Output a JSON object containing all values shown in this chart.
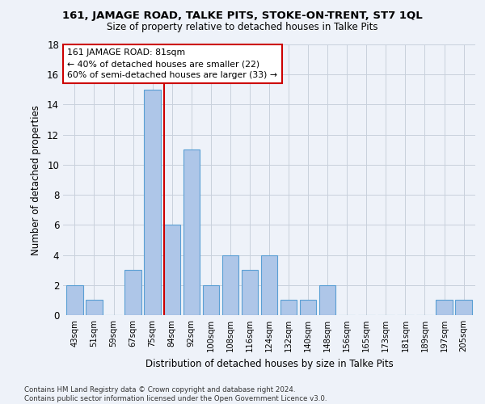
{
  "title": "161, JAMAGE ROAD, TALKE PITS, STOKE-ON-TRENT, ST7 1QL",
  "subtitle": "Size of property relative to detached houses in Talke Pits",
  "xlabel": "Distribution of detached houses by size in Talke Pits",
  "ylabel": "Number of detached properties",
  "categories": [
    "43sqm",
    "51sqm",
    "59sqm",
    "67sqm",
    "75sqm",
    "84sqm",
    "92sqm",
    "100sqm",
    "108sqm",
    "116sqm",
    "124sqm",
    "132sqm",
    "140sqm",
    "148sqm",
    "156sqm",
    "165sqm",
    "173sqm",
    "181sqm",
    "189sqm",
    "197sqm",
    "205sqm"
  ],
  "values": [
    2,
    1,
    0,
    3,
    15,
    6,
    11,
    2,
    4,
    3,
    4,
    1,
    1,
    2,
    0,
    0,
    0,
    0,
    0,
    1,
    1
  ],
  "bar_color": "#aec6e8",
  "bar_edge_color": "#5a9fd4",
  "vline_x": 4.58,
  "vline_color": "#cc0000",
  "annotation_text": "161 JAMAGE ROAD: 81sqm\n← 40% of detached houses are smaller (22)\n60% of semi-detached houses are larger (33) →",
  "annotation_box_color": "#ffffff",
  "annotation_box_edge": "#cc0000",
  "ylim": [
    0,
    18
  ],
  "yticks": [
    0,
    2,
    4,
    6,
    8,
    10,
    12,
    14,
    16,
    18
  ],
  "footnote": "Contains HM Land Registry data © Crown copyright and database right 2024.\nContains public sector information licensed under the Open Government Licence v3.0.",
  "background_color": "#eef2f9",
  "grid_color": "#c8d0dc"
}
